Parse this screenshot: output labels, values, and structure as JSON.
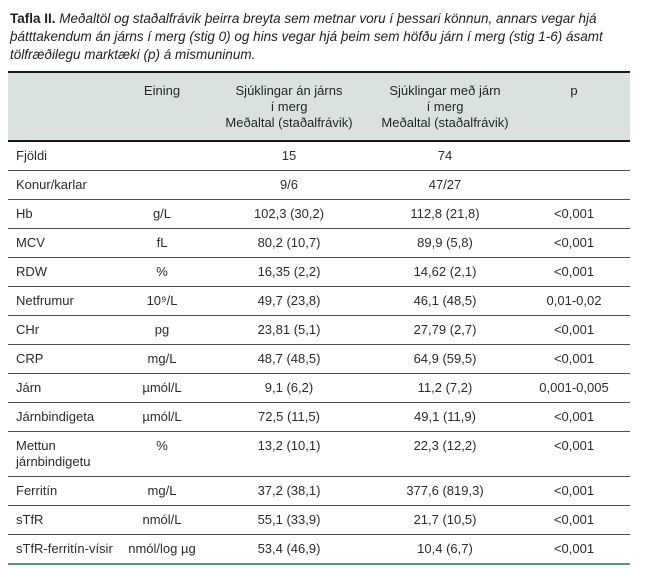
{
  "caption": {
    "label": "Tafla II.",
    "text": "Meðaltöl og staðalfrávik þeirra breyta sem metnar voru í þessari könnun, annars vegar hjá þátttakendum án járns í merg (stig 0) og hins vegar hjá þeim sem höfðu járn í merg (stig 1-6) ásamt tölfræðilegu marktæki (p) á mismuninum."
  },
  "table": {
    "header": {
      "name": "",
      "unit": "Eining",
      "group0_line1": "Sjúklingar án járns",
      "group0_line2": "í merg",
      "group0_line3": "Meðaltal (staðalfrávik)",
      "group16_line1": "Sjúklingar með járn",
      "group16_line2": "í merg",
      "group16_line3": "Meðaltal (staðalfrávik)",
      "p": "p"
    },
    "rows": [
      {
        "name": "Fjöldi",
        "unit": "",
        "group0": "15",
        "group16": "74",
        "p": ""
      },
      {
        "name": "Konur/karlar",
        "unit": "",
        "group0": "9/6",
        "group16": "47/27",
        "p": ""
      },
      {
        "name": "Hb",
        "unit": "g/L",
        "group0": "102,3 (30,2)",
        "group16": "112,8 (21,8)",
        "p": "<0,001"
      },
      {
        "name": "MCV",
        "unit": "fL",
        "group0": "80,2 (10,7)",
        "group16": "89,9 (5,8)",
        "p": "<0,001"
      },
      {
        "name": "RDW",
        "unit": "%",
        "group0": "16,35 (2,2)",
        "group16": "14,62 (2,1)",
        "p": "<0,001"
      },
      {
        "name": "Netfrumur",
        "unit": "10⁹/L",
        "group0": "49,7 (23,8)",
        "group16": "46,1 (48,5)",
        "p": "0,01-0,02"
      },
      {
        "name": "CHr",
        "unit": "pg",
        "group0": "23,81 (5,1)",
        "group16": "27,79 (2,7)",
        "p": "<0,001"
      },
      {
        "name": "CRP",
        "unit": "mg/L",
        "group0": "48,7 (48,5)",
        "group16": "64,9 (59,5)",
        "p": "<0,001"
      },
      {
        "name": "Járn",
        "unit": "µmól/L",
        "group0": "9,1 (6,2)",
        "group16": "11,2 (7,2)",
        "p": "0,001-0,005"
      },
      {
        "name": "Járnbindigeta",
        "unit": "µmól/L",
        "group0": "72,5 (11,5)",
        "group16": "49,1 (11,9)",
        "p": "<0,001"
      },
      {
        "name": "Mettun járnbindigetu",
        "unit": "%",
        "group0": "13,2 (10,1)",
        "group16": "22,3 (12,2)",
        "p": "<0,001"
      },
      {
        "name": "Ferritín",
        "unit": "mg/L",
        "group0": "37,2 (38,1)",
        "group16": "377,6 (819,3)",
        "p": "<0,001"
      },
      {
        "name": "sTfR",
        "unit": "nmól/L",
        "group0": "55,1 (33,9)",
        "group16": "21,7 (10,5)",
        "p": "<0,001"
      },
      {
        "name": "sTfR-ferritín-vísir",
        "unit": "nmól/log µg",
        "group0": "53,4 (46,9)",
        "group16": "10,4 (6,7)",
        "p": "<0,001"
      }
    ]
  },
  "colors": {
    "header_bg": "#dae2df",
    "rule_dark": "#1a1a1a",
    "row_line": "#4d4d4d",
    "bottom_accent": "#4d93a6"
  }
}
